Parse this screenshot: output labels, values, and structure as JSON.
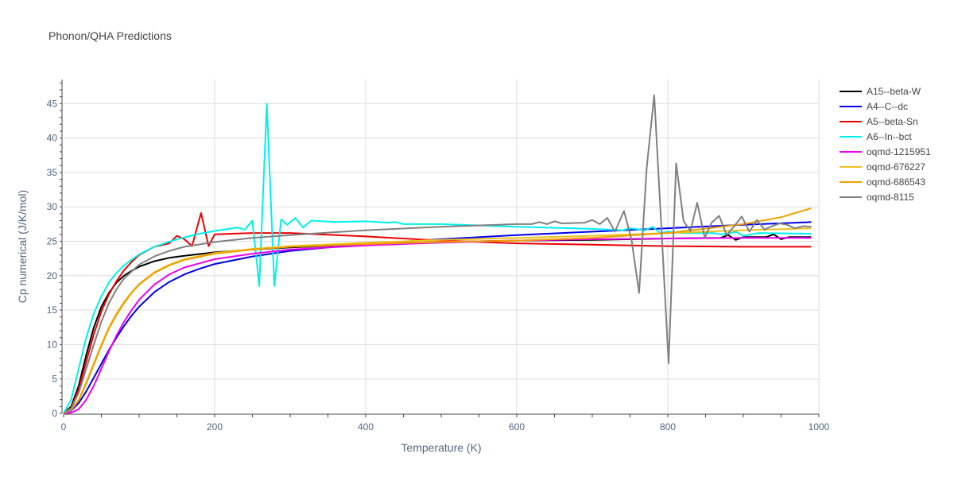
{
  "colors": {
    "background": "#ffffff",
    "grid": "#dddddd",
    "axis_text": "#506784",
    "title_text": "#444444"
  },
  "chart_data": {
    "type": "line",
    "title": "Phonon/QHA Predictions",
    "xlabel": "Temperature (K)",
    "ylabel": "Cp numerical (J/K/mol)",
    "xlim": [
      0,
      1000
    ],
    "ylim": [
      0,
      48.5
    ],
    "xticks": [
      0,
      200,
      400,
      600,
      800,
      1000
    ],
    "yticks": [
      0,
      5,
      10,
      15,
      20,
      25,
      30,
      35,
      40,
      45
    ],
    "grid": true,
    "legend_position": "right",
    "series": [
      {
        "name": "A15--beta-W",
        "color": "#000000",
        "points": [
          [
            0,
            0
          ],
          [
            10,
            1
          ],
          [
            20,
            4
          ],
          [
            30,
            8.5
          ],
          [
            40,
            12.5
          ],
          [
            50,
            15.5
          ],
          [
            60,
            17.5
          ],
          [
            70,
            19
          ],
          [
            80,
            20
          ],
          [
            90,
            20.7
          ],
          [
            100,
            21.3
          ],
          [
            120,
            22.1
          ],
          [
            140,
            22.6
          ],
          [
            160,
            22.9
          ],
          [
            200,
            23.4
          ],
          [
            250,
            23.8
          ],
          [
            300,
            24.1
          ],
          [
            400,
            24.6
          ],
          [
            500,
            24.9
          ],
          [
            600,
            25.1
          ],
          [
            700,
            25.2
          ],
          [
            800,
            25.4
          ],
          [
            870,
            25.5
          ],
          [
            880,
            25.9
          ],
          [
            890,
            25.2
          ],
          [
            900,
            25.6
          ],
          [
            930,
            25.6
          ],
          [
            940,
            26
          ],
          [
            950,
            25.3
          ],
          [
            960,
            25.6
          ],
          [
            990,
            25.6
          ]
        ]
      },
      {
        "name": "A4--C--dc",
        "color": "#0000ee",
        "points": [
          [
            0,
            0
          ],
          [
            10,
            0.4
          ],
          [
            20,
            1.5
          ],
          [
            30,
            3.2
          ],
          [
            40,
            5.2
          ],
          [
            50,
            7.2
          ],
          [
            60,
            9.2
          ],
          [
            70,
            11
          ],
          [
            80,
            12.7
          ],
          [
            90,
            14.2
          ],
          [
            100,
            15.5
          ],
          [
            120,
            17.6
          ],
          [
            140,
            19.1
          ],
          [
            160,
            20.2
          ],
          [
            180,
            21
          ],
          [
            200,
            21.7
          ],
          [
            250,
            22.8
          ],
          [
            300,
            23.6
          ],
          [
            400,
            24.6
          ],
          [
            500,
            25.3
          ],
          [
            600,
            25.9
          ],
          [
            700,
            26.4
          ],
          [
            800,
            26.9
          ],
          [
            900,
            27.4
          ],
          [
            990,
            27.8
          ]
        ]
      },
      {
        "name": "A5--beta-Sn",
        "color": "#ee0000",
        "points": [
          [
            0,
            0
          ],
          [
            10,
            0.8
          ],
          [
            20,
            3.5
          ],
          [
            30,
            7.5
          ],
          [
            40,
            11.5
          ],
          [
            50,
            14.8
          ],
          [
            60,
            17.3
          ],
          [
            70,
            19.2
          ],
          [
            80,
            20.8
          ],
          [
            90,
            22
          ],
          [
            100,
            23
          ],
          [
            120,
            24.2
          ],
          [
            140,
            24.7
          ],
          [
            150,
            25.8
          ],
          [
            160,
            25.3
          ],
          [
            170,
            24.3
          ],
          [
            182,
            29.1
          ],
          [
            192,
            24.3
          ],
          [
            200,
            26
          ],
          [
            250,
            26.2
          ],
          [
            300,
            26.2
          ],
          [
            400,
            25.7
          ],
          [
            500,
            25.1
          ],
          [
            600,
            24.7
          ],
          [
            700,
            24.5
          ],
          [
            800,
            24.3
          ],
          [
            900,
            24.2
          ],
          [
            990,
            24.2
          ]
        ]
      },
      {
        "name": "A6--In--bct",
        "color": "#00f0f0",
        "points": [
          [
            0,
            0
          ],
          [
            10,
            2
          ],
          [
            20,
            6.5
          ],
          [
            30,
            11
          ],
          [
            40,
            14.5
          ],
          [
            50,
            17
          ],
          [
            60,
            19
          ],
          [
            70,
            20.4
          ],
          [
            80,
            21.5
          ],
          [
            100,
            23.1
          ],
          [
            120,
            24.2
          ],
          [
            150,
            25.3
          ],
          [
            180,
            26.1
          ],
          [
            200,
            26.5
          ],
          [
            230,
            27
          ],
          [
            240,
            26.7
          ],
          [
            250,
            28
          ],
          [
            259,
            18.5
          ],
          [
            269,
            45
          ],
          [
            279,
            18.5
          ],
          [
            288,
            28.2
          ],
          [
            296,
            27.4
          ],
          [
            307,
            28.4
          ],
          [
            317,
            27
          ],
          [
            328,
            28
          ],
          [
            360,
            27.8
          ],
          [
            400,
            27.9
          ],
          [
            430,
            27.7
          ],
          [
            440,
            27.8
          ],
          [
            450,
            27.5
          ],
          [
            500,
            27.5
          ],
          [
            600,
            27.1
          ],
          [
            700,
            26.8
          ],
          [
            740,
            26.6
          ],
          [
            750,
            26.9
          ],
          [
            770,
            26.6
          ],
          [
            780,
            27.1
          ],
          [
            790,
            26.2
          ],
          [
            800,
            26.4
          ],
          [
            820,
            26.2
          ],
          [
            860,
            26.2
          ],
          [
            870,
            26
          ],
          [
            880,
            26.1
          ],
          [
            890,
            26.4
          ],
          [
            900,
            25.8
          ],
          [
            920,
            26.2
          ],
          [
            990,
            26.1
          ]
        ]
      },
      {
        "name": "oqmd-1215951",
        "color": "#ee00ee",
        "points": [
          [
            0,
            0
          ],
          [
            10,
            0.1
          ],
          [
            20,
            0.6
          ],
          [
            30,
            2
          ],
          [
            40,
            4
          ],
          [
            50,
            6.5
          ],
          [
            60,
            9
          ],
          [
            70,
            11.3
          ],
          [
            80,
            13.3
          ],
          [
            90,
            15
          ],
          [
            100,
            16.5
          ],
          [
            120,
            18.7
          ],
          [
            140,
            20.2
          ],
          [
            160,
            21.2
          ],
          [
            200,
            22.4
          ],
          [
            250,
            23.2
          ],
          [
            300,
            23.8
          ],
          [
            400,
            24.4
          ],
          [
            500,
            24.8
          ],
          [
            600,
            25.1
          ],
          [
            700,
            25.3
          ],
          [
            800,
            25.4
          ],
          [
            900,
            25.5
          ],
          [
            990,
            25.5
          ]
        ]
      },
      {
        "name": "oqmd-676227",
        "color": "#f0c020",
        "points": [
          [
            0,
            0
          ],
          [
            10,
            0.5
          ],
          [
            20,
            2
          ],
          [
            30,
            4.5
          ],
          [
            40,
            7.3
          ],
          [
            50,
            10
          ],
          [
            60,
            12.5
          ],
          [
            70,
            14.5
          ],
          [
            80,
            16.2
          ],
          [
            90,
            17.6
          ],
          [
            100,
            18.8
          ],
          [
            120,
            20.5
          ],
          [
            140,
            21.6
          ],
          [
            160,
            22.4
          ],
          [
            200,
            23.3
          ],
          [
            250,
            23.9
          ],
          [
            300,
            24.3
          ],
          [
            400,
            24.8
          ],
          [
            500,
            25.2
          ],
          [
            600,
            25.5
          ],
          [
            700,
            25.8
          ],
          [
            800,
            26.2
          ],
          [
            900,
            26.6
          ],
          [
            990,
            26.9
          ]
        ]
      },
      {
        "name": "oqmd-686543",
        "color": "#f0a000",
        "points": [
          [
            0,
            0
          ],
          [
            10,
            0.5
          ],
          [
            20,
            1.9
          ],
          [
            30,
            4.3
          ],
          [
            40,
            7.1
          ],
          [
            50,
            9.8
          ],
          [
            60,
            12.3
          ],
          [
            70,
            14.3
          ],
          [
            80,
            16
          ],
          [
            90,
            17.5
          ],
          [
            100,
            18.7
          ],
          [
            120,
            20.4
          ],
          [
            140,
            21.5
          ],
          [
            160,
            22.3
          ],
          [
            200,
            23.2
          ],
          [
            250,
            23.8
          ],
          [
            300,
            24.2
          ],
          [
            400,
            24.6
          ],
          [
            500,
            24.9
          ],
          [
            600,
            25.1
          ],
          [
            700,
            25.5
          ],
          [
            800,
            26.2
          ],
          [
            900,
            27.5
          ],
          [
            950,
            28.5
          ],
          [
            990,
            29.8
          ]
        ]
      },
      {
        "name": "oqmd-8115",
        "color": "#808080",
        "points": [
          [
            0,
            0
          ],
          [
            10,
            0.7
          ],
          [
            20,
            3
          ],
          [
            30,
            6.5
          ],
          [
            40,
            10
          ],
          [
            50,
            13.3
          ],
          [
            60,
            16
          ],
          [
            70,
            18
          ],
          [
            80,
            19.6
          ],
          [
            100,
            21.6
          ],
          [
            120,
            22.8
          ],
          [
            140,
            23.6
          ],
          [
            160,
            24.2
          ],
          [
            200,
            24.9
          ],
          [
            250,
            25.5
          ],
          [
            300,
            25.9
          ],
          [
            400,
            26.6
          ],
          [
            500,
            27.1
          ],
          [
            600,
            27.5
          ],
          [
            620,
            27.5
          ],
          [
            630,
            27.8
          ],
          [
            640,
            27.5
          ],
          [
            650,
            27.9
          ],
          [
            660,
            27.6
          ],
          [
            690,
            27.7
          ],
          [
            700,
            28.1
          ],
          [
            710,
            27.5
          ],
          [
            720,
            28.4
          ],
          [
            730,
            26.4
          ],
          [
            742,
            29.4
          ],
          [
            752,
            25.2
          ],
          [
            762,
            17.5
          ],
          [
            772,
            35.6
          ],
          [
            782,
            46.2
          ],
          [
            792,
            26
          ],
          [
            801,
            7.3
          ],
          [
            811,
            36.3
          ],
          [
            821,
            27.9
          ],
          [
            830,
            26.5
          ],
          [
            839,
            30.6
          ],
          [
            849,
            25.5
          ],
          [
            858,
            27.7
          ],
          [
            868,
            28.7
          ],
          [
            878,
            25.9
          ],
          [
            888,
            27.2
          ],
          [
            898,
            28.6
          ],
          [
            908,
            26.4
          ],
          [
            918,
            28.1
          ],
          [
            928,
            26.7
          ],
          [
            938,
            27.2
          ],
          [
            948,
            27.6
          ],
          [
            958,
            27.4
          ],
          [
            968,
            26.9
          ],
          [
            980,
            27.2
          ],
          [
            990,
            27.1
          ]
        ]
      }
    ]
  }
}
